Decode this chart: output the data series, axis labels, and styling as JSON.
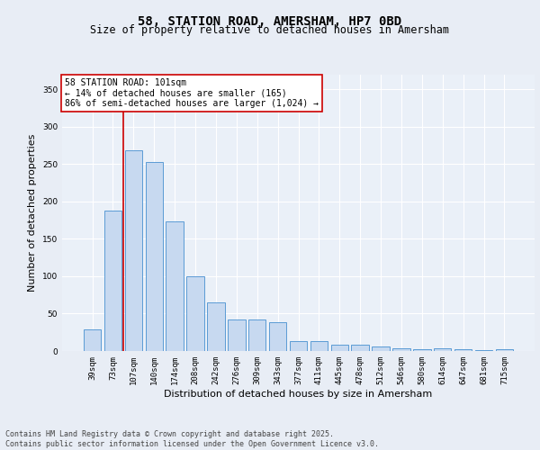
{
  "title": "58, STATION ROAD, AMERSHAM, HP7 0BD",
  "subtitle": "Size of property relative to detached houses in Amersham",
  "xlabel": "Distribution of detached houses by size in Amersham",
  "ylabel": "Number of detached properties",
  "categories": [
    "39sqm",
    "73sqm",
    "107sqm",
    "140sqm",
    "174sqm",
    "208sqm",
    "242sqm",
    "276sqm",
    "309sqm",
    "343sqm",
    "377sqm",
    "411sqm",
    "445sqm",
    "478sqm",
    "512sqm",
    "546sqm",
    "580sqm",
    "614sqm",
    "647sqm",
    "681sqm",
    "715sqm"
  ],
  "values": [
    29,
    188,
    268,
    253,
    173,
    100,
    65,
    42,
    42,
    38,
    13,
    13,
    8,
    8,
    6,
    4,
    3,
    4,
    3,
    1,
    2
  ],
  "bar_color": "#c7d9f0",
  "bar_edge_color": "#5b9bd5",
  "vline_position": 1.5,
  "vline_color": "#cc0000",
  "annotation_text": "58 STATION ROAD: 101sqm\n← 14% of detached houses are smaller (165)\n86% of semi-detached houses are larger (1,024) →",
  "annotation_box_color": "#ffffff",
  "annotation_box_edge_color": "#cc0000",
  "ylim": [
    0,
    370
  ],
  "yticks": [
    0,
    50,
    100,
    150,
    200,
    250,
    300,
    350
  ],
  "background_color": "#e8edf5",
  "plot_background_color": "#eaf0f8",
  "grid_color": "#ffffff",
  "title_fontsize": 10,
  "subtitle_fontsize": 8.5,
  "xlabel_fontsize": 8,
  "ylabel_fontsize": 8,
  "tick_fontsize": 6.5,
  "annotation_fontsize": 7,
  "footer_text": "Contains HM Land Registry data © Crown copyright and database right 2025.\nContains public sector information licensed under the Open Government Licence v3.0.",
  "footer_fontsize": 6
}
